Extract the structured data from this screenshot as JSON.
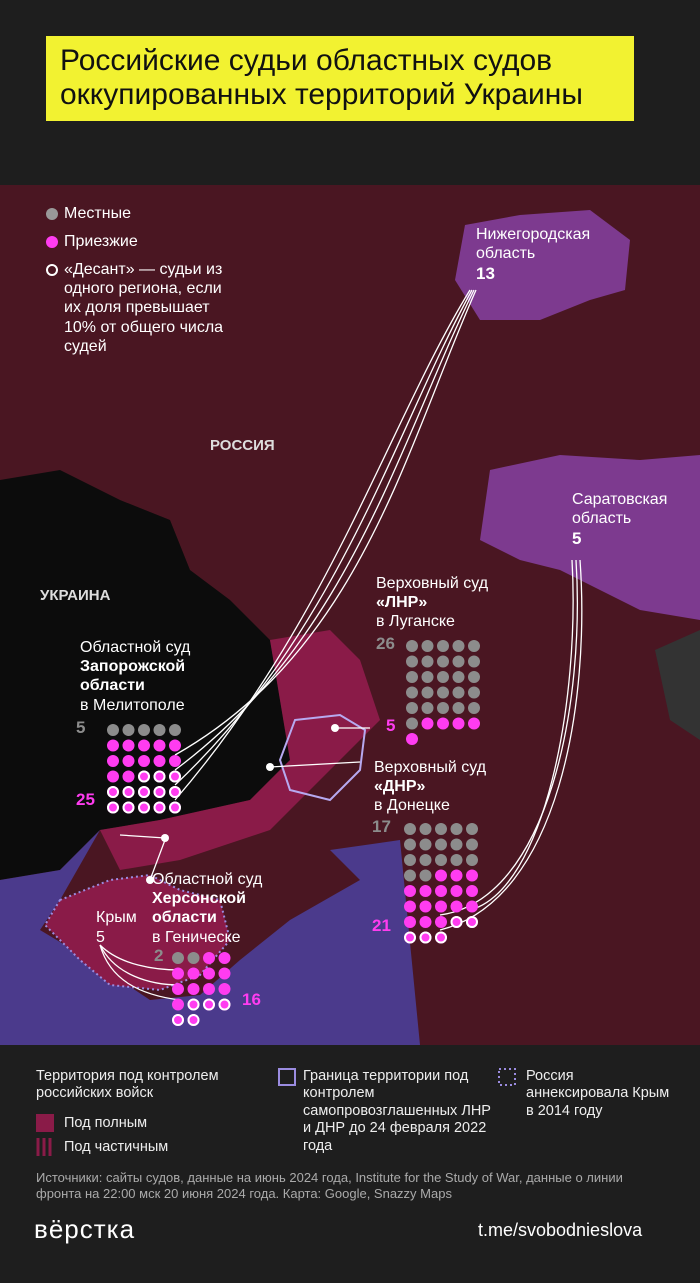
{
  "header": {
    "title": "Российские судьи областных судов оккупированных территорий Украины"
  },
  "legend": {
    "local": "Местные",
    "incoming": "Приезжие",
    "desant": "«Десант» — судьи из одного региона, если их доля превышает 10% от общего числа судей"
  },
  "map": {
    "russia": "РОССИЯ",
    "ukraine": "УКРАИНА"
  },
  "regions": [
    {
      "name": "Нижегородская область",
      "count": 13
    },
    {
      "name": "Саратовская область",
      "count": 5
    },
    {
      "name": "Крым",
      "count": 5
    }
  ],
  "courts": [
    {
      "title": "Областной суд",
      "region": "Запорожской области",
      "city": "в Мелитополе",
      "local": 5,
      "incoming": 25
    },
    {
      "title": "Верховный суд",
      "region": "«ЛНР»",
      "city": "в Луганске",
      "local": 26,
      "incoming": 5
    },
    {
      "title": "Верховный суд",
      "region": "«ДНР»",
      "city": "в Донецке",
      "local": 17,
      "incoming": 21
    },
    {
      "title": "Областной суд",
      "region": "Херсонской области",
      "city": "в Геническе",
      "local": 2,
      "incoming": 16
    }
  ],
  "footer": {
    "control_title": "Территория под контролем российских войск",
    "full": "Под полным",
    "partial": "Под частичным",
    "border": "Граница территории под контролем самопровозглашенных ЛНР и ДНР до 24 февраля 2022 года",
    "crimea": "Россия аннексировала Крым в 2014 году",
    "sources": "Источники: сайты судов, данные на июнь 2024 года, Institute for the Study of War, данные о линии фронта на 22:00 мск 20 июня 2024 года. Карта: Google, Snazzy Maps",
    "logo": "вёрстка",
    "link": "t.me/svobodnieslova"
  }
}
